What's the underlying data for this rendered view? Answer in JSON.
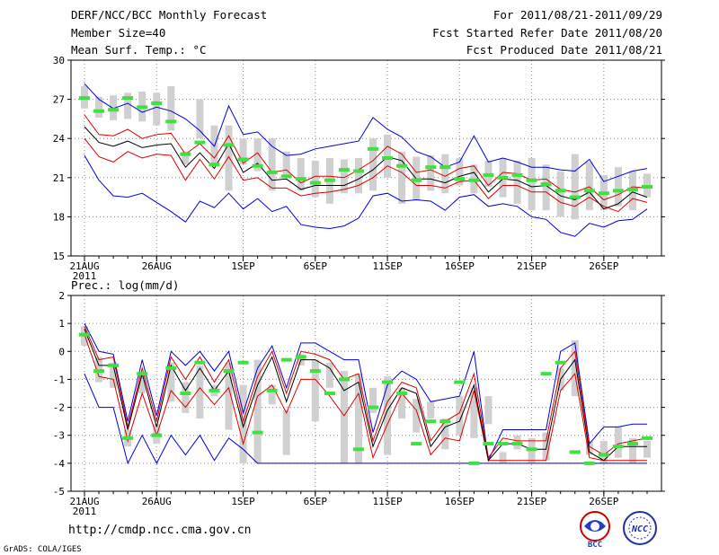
{
  "header": {
    "title": "DERF/NCC/BCC Monthly Forecast",
    "member": "Member Size=40",
    "variable": "Mean Surf. Temp.: °C",
    "period": "For 2011/08/21-2011/09/29",
    "started": "Fcst Started Refer Date 2011/08/20",
    "produced": "Fcst Produced Date 2011/08/21"
  },
  "url": "http://cmdp.ncc.cma.gov.cn",
  "credit": "GrADS: COLA/IGES",
  "logos": {
    "left": "BCC",
    "right": "NCC"
  },
  "colors": {
    "box": "#d0d0d0",
    "mean": "#000000",
    "quartile": "#e00000",
    "extreme": "#0000e0",
    "median": "#40e040"
  },
  "chart_data": [
    {
      "type": "box-ensemble",
      "title": "Mean Surf. Temp.: °C",
      "ylim": [
        15,
        30
      ],
      "yticks": [
        15,
        18,
        21,
        24,
        27,
        30
      ],
      "xtick_labels": [
        "21AUG",
        "26AUG",
        "1SEP",
        "6SEP",
        "11SEP",
        "16SEP",
        "21SEP",
        "26SEP"
      ],
      "xtick_days": [
        1,
        6,
        12,
        17,
        22,
        27,
        32,
        37
      ],
      "year_label": "2011",
      "days": 40,
      "box_low": [
        26.3,
        25.6,
        25.4,
        25.5,
        25.3,
        25.0,
        24.6,
        22.0,
        24.0,
        22.0,
        20.0,
        22.0,
        21.5,
        20.0,
        21.0,
        20.0,
        19.5,
        19.0,
        19.8,
        19.8,
        20.0,
        21.0,
        19.0,
        19.3,
        20.0,
        19.8,
        20.4,
        19.8,
        20.3,
        19.5,
        19.0,
        18.5,
        18.5,
        18.0,
        17.8,
        18.5,
        18.5,
        18.8,
        18.5,
        19.5
      ],
      "box_high": [
        28.0,
        27.2,
        27.3,
        27.5,
        27.6,
        27.5,
        28.0,
        23.0,
        27.0,
        25.0,
        25.0,
        24.0,
        24.0,
        24.0,
        23.0,
        22.5,
        22.3,
        22.5,
        22.4,
        22.5,
        24.0,
        24.3,
        23.0,
        22.6,
        22.7,
        22.8,
        22.5,
        22.0,
        22.3,
        22.5,
        22.3,
        22.5,
        22.0,
        21.5,
        22.8,
        22.2,
        21.2,
        21.8,
        21.5,
        21.3
      ],
      "mean": [
        24.9,
        23.7,
        23.4,
        23.8,
        23.3,
        23.5,
        23.6,
        21.8,
        22.9,
        21.7,
        23.6,
        21.4,
        22.1,
        20.8,
        20.9,
        20.1,
        20.4,
        20.4,
        20.4,
        20.9,
        21.6,
        22.6,
        22.3,
        20.9,
        20.9,
        20.6,
        21.1,
        21.4,
        19.9,
        20.9,
        20.8,
        20.3,
        20.4,
        19.6,
        19.3,
        19.9,
        18.6,
        19.0,
        19.9,
        19.5
      ],
      "q_low": [
        24.0,
        22.6,
        22.2,
        23.0,
        22.5,
        22.8,
        22.7,
        20.8,
        22.4,
        20.9,
        22.6,
        20.8,
        21.0,
        20.2,
        20.2,
        19.6,
        19.8,
        19.9,
        20.1,
        20.4,
        21.0,
        21.9,
        21.4,
        20.4,
        20.4,
        20.2,
        20.7,
        20.8,
        19.4,
        20.4,
        20.4,
        19.9,
        19.9,
        19.1,
        18.8,
        19.5,
        18.8,
        18.4,
        19.4,
        19.1
      ],
      "q_high": [
        25.8,
        24.3,
        24.2,
        24.7,
        24.0,
        24.3,
        24.4,
        22.8,
        23.6,
        22.5,
        24.2,
        22.1,
        22.9,
        21.4,
        21.6,
        20.6,
        21.1,
        21.1,
        21.0,
        21.6,
        22.3,
        23.4,
        22.8,
        21.4,
        21.6,
        21.1,
        21.7,
        21.9,
        20.4,
        21.4,
        21.3,
        20.8,
        20.9,
        20.1,
        19.9,
        20.3,
        19.3,
        19.7,
        20.3,
        20.2
      ],
      "ens_min": [
        22.7,
        20.8,
        19.6,
        19.5,
        19.8,
        19.1,
        18.4,
        17.6,
        19.2,
        18.7,
        19.8,
        18.6,
        19.4,
        18.4,
        18.8,
        17.4,
        17.2,
        17.1,
        17.3,
        17.9,
        19.6,
        19.8,
        19.2,
        19.3,
        19.2,
        18.5,
        19.5,
        19.7,
        18.8,
        19.0,
        18.8,
        18.0,
        17.8,
        16.8,
        16.5,
        17.5,
        17.2,
        17.7,
        17.8,
        18.6
      ],
      "ens_max": [
        28.2,
        27.0,
        26.3,
        26.7,
        26.0,
        26.4,
        26.1,
        25.5,
        24.6,
        23.4,
        26.5,
        24.3,
        24.5,
        23.4,
        22.7,
        22.8,
        23.2,
        23.4,
        23.6,
        23.8,
        25.6,
        24.7,
        24.1,
        23.0,
        22.6,
        21.8,
        22.2,
        24.2,
        22.2,
        22.5,
        22.2,
        21.8,
        21.8,
        21.6,
        21.5,
        22.4,
        20.7,
        21.1,
        21.5,
        21.7
      ],
      "median": [
        27.1,
        26.1,
        26.2,
        27.1,
        26.4,
        26.7,
        25.3,
        22.8,
        23.7,
        22.0,
        23.5,
        22.4,
        21.9,
        21.4,
        21.1,
        20.9,
        20.6,
        20.8,
        21.6,
        21.5,
        23.2,
        22.5,
        21.9,
        20.8,
        21.8,
        21.8,
        20.9,
        20.8,
        21.2,
        21.0,
        21.2,
        20.8,
        20.5,
        20.0,
        19.5,
        20.0,
        19.8,
        20.0,
        20.1,
        20.3
      ]
    },
    {
      "type": "box-ensemble",
      "title": "Prec.: log(mm/d)",
      "ylim": [
        -5,
        2
      ],
      "yticks": [
        -5,
        -4,
        -3,
        -2,
        -1,
        0,
        1,
        2
      ],
      "xtick_labels": [
        "21AUG",
        "26AUG",
        "1SEP",
        "6SEP",
        "11SEP",
        "16SEP",
        "21SEP",
        "26SEP"
      ],
      "xtick_days": [
        1,
        6,
        12,
        17,
        22,
        27,
        32,
        37
      ],
      "year_label": "2011",
      "days": 40,
      "box_low": [
        0.2,
        -1.1,
        -1.3,
        -3.4,
        -1.5,
        -3.3,
        -1.8,
        -2.2,
        -2.4,
        -1.6,
        -2.8,
        -4.0,
        -4.0,
        -1.9,
        -3.7,
        -0.5,
        -2.5,
        -1.3,
        -4.0,
        -4.0,
        -2.2,
        -3.7,
        -2.4,
        -2.9,
        -2.4,
        -3.5,
        -3.0,
        -3.1,
        -2.6,
        -4.0,
        -3.5,
        -4.0,
        -3.9,
        -1.4,
        -1.6,
        -3.7,
        -4.0,
        -3.8,
        -4.0,
        -3.8
      ],
      "box_high": [
        0.9,
        -0.2,
        -0.4,
        -2.8,
        -0.8,
        -2.6,
        -0.4,
        -1.1,
        -0.5,
        -1.2,
        -0.4,
        -1.2,
        -0.3,
        -1.2,
        -2.1,
        -0.1,
        -0.3,
        -0.4,
        -0.7,
        -0.8,
        -1.3,
        -0.9,
        -1.3,
        -1.7,
        -1.8,
        -2.4,
        -1.6,
        -1.3,
        -1.6,
        -3.6,
        -3.0,
        -3.1,
        -2.9,
        -0.6,
        0.4,
        -3.2,
        -3.2,
        -2.7,
        -3.1,
        -3.2
      ],
      "mean": [
        0.8,
        -0.5,
        -0.5,
        -2.8,
        -0.8,
        -2.7,
        -0.5,
        -1.4,
        -0.6,
        -1.4,
        -0.7,
        -2.7,
        -1.2,
        -0.2,
        -1.8,
        -0.3,
        -0.3,
        -0.6,
        -1.4,
        -1.1,
        -3.4,
        -2.1,
        -1.3,
        -1.5,
        -3.4,
        -2.7,
        -2.5,
        -1.2,
        -3.9,
        -3.3,
        -3.3,
        -3.5,
        -3.5,
        -1.0,
        -0.3,
        -3.6,
        -3.9,
        -3.4,
        -3.4,
        -3.4
      ],
      "q_low": [
        0.6,
        -0.9,
        -1.0,
        -3.2,
        -1.5,
        -3.0,
        -1.4,
        -2.0,
        -1.3,
        -1.9,
        -1.3,
        -3.3,
        -1.6,
        -1.2,
        -2.2,
        -1.0,
        -1.0,
        -1.6,
        -2.3,
        -1.5,
        -3.8,
        -2.6,
        -1.5,
        -2.1,
        -3.7,
        -3.1,
        -3.2,
        -1.4,
        -3.9,
        -3.9,
        -3.9,
        -3.9,
        -3.9,
        -1.4,
        -0.8,
        -3.8,
        -3.9,
        -3.9,
        -3.9,
        -3.9
      ],
      "q_high": [
        0.9,
        -0.3,
        -0.2,
        -2.7,
        -0.6,
        -2.5,
        -0.2,
        -1.0,
        -0.2,
        -1.1,
        -0.3,
        -2.5,
        -0.9,
        0.0,
        -1.5,
        0.0,
        -0.1,
        -0.3,
        -1.0,
        -0.8,
        -3.2,
        -1.8,
        -1.1,
        -1.3,
        -3.2,
        -2.5,
        -2.2,
        -0.8,
        -3.8,
        -3.1,
        -3.2,
        -3.2,
        -3.2,
        -0.6,
        0.0,
        -3.4,
        -3.7,
        -3.3,
        -3.2,
        -3.1
      ],
      "ens_min": [
        -0.8,
        -2.0,
        -2.0,
        -4.0,
        -3.0,
        -4.0,
        -3.0,
        -3.7,
        -3.0,
        -3.9,
        -3.1,
        -3.5,
        -4.0,
        -4.0,
        -4.0,
        -4.0,
        -4.0,
        -4.0,
        -4.0,
        -4.0,
        -4.0,
        -4.0,
        -4.0,
        -4.0,
        -4.0,
        -4.0,
        -4.0,
        -4.0,
        -4.0,
        -4.0,
        -4.0,
        -4.0,
        -4.0,
        -4.0,
        -4.0,
        -4.0,
        -4.0,
        -4.0,
        -4.0,
        -4.0
      ],
      "ens_max": [
        1.0,
        0.0,
        -0.1,
        -2.5,
        -0.3,
        -2.3,
        0.0,
        -0.5,
        0.0,
        -0.7,
        0.0,
        -2.2,
        -0.6,
        0.2,
        -1.3,
        0.3,
        0.3,
        0.0,
        -0.3,
        -0.3,
        -2.9,
        -1.2,
        -0.7,
        -1.0,
        -1.8,
        -1.7,
        -1.6,
        0.0,
        -3.9,
        -2.8,
        -2.8,
        -2.8,
        -2.8,
        0.0,
        0.3,
        -3.3,
        -2.7,
        -2.7,
        -2.6,
        -2.6
      ],
      "median": [
        0.6,
        -0.7,
        -0.5,
        -3.1,
        -0.8,
        -3.0,
        -0.6,
        -1.5,
        -0.4,
        -1.4,
        -0.7,
        -0.4,
        -2.9,
        -1.4,
        -0.3,
        -0.2,
        -0.7,
        -1.5,
        -1.0,
        -3.5,
        -2.0,
        -1.1,
        -1.5,
        -3.3,
        -2.5,
        -2.5,
        -1.1,
        -4.0,
        -3.3,
        -3.3,
        -3.3,
        -3.5,
        -0.8,
        -0.4,
        -3.6,
        -4.0,
        -3.7,
        -3.4,
        -3.3,
        -3.1
      ]
    }
  ]
}
